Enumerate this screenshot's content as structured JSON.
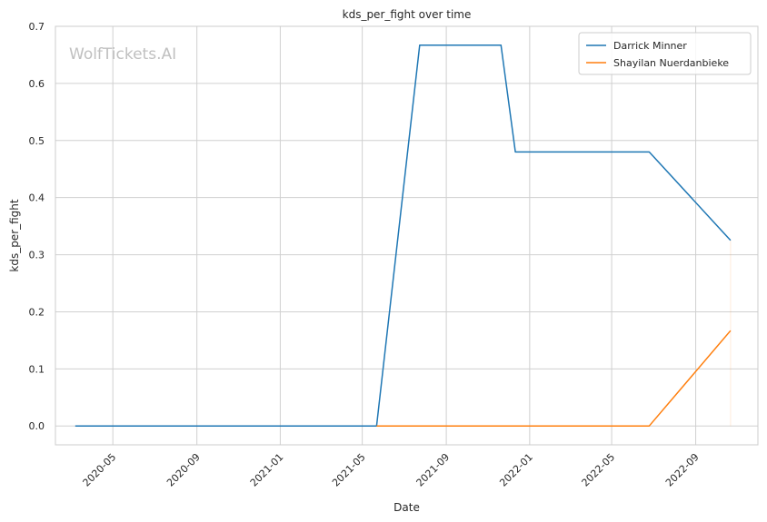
{
  "watermark": "WolfTickets.AI",
  "chart_data": {
    "type": "line",
    "title": "kds_per_fight over time",
    "xlabel": "Date",
    "ylabel": "kds_per_fight",
    "x_is_date": true,
    "xlim": [
      "2020-02-07",
      "2022-12-01"
    ],
    "ylim": [
      -0.033,
      0.7
    ],
    "x_ticks": [
      "2020-05-01",
      "2020-09-01",
      "2021-01-01",
      "2021-05-01",
      "2021-09-01",
      "2022-01-01",
      "2022-05-01",
      "2022-09-01"
    ],
    "x_tick_labels": [
      "2020-05",
      "2020-09",
      "2021-01",
      "2021-05",
      "2021-09",
      "2022-01",
      "2022-05",
      "2022-09"
    ],
    "y_ticks": [
      0.0,
      0.1,
      0.2,
      0.3,
      0.4,
      0.5,
      0.6,
      0.7
    ],
    "y_tick_labels": [
      "0.0",
      "0.1",
      "0.2",
      "0.3",
      "0.4",
      "0.5",
      "0.6",
      "0.7"
    ],
    "grid": true,
    "legend_position": "top-right",
    "series": [
      {
        "name": "Darrick Minner",
        "color": "#1f77b4",
        "x": [
          "2020-03-07",
          "2021-05-22",
          "2021-07-24",
          "2021-11-20",
          "2021-12-11",
          "2022-06-25",
          "2022-10-22"
        ],
        "y": [
          0.0,
          0.0,
          0.667,
          0.667,
          0.48,
          0.48,
          0.325
        ]
      },
      {
        "name": "Shayilan Nuerdanbieke",
        "color": "#ff7f0e",
        "x": [
          "2021-05-22",
          "2022-06-25",
          "2022-10-22"
        ],
        "y": [
          0.0,
          0.0,
          0.167
        ]
      }
    ]
  }
}
